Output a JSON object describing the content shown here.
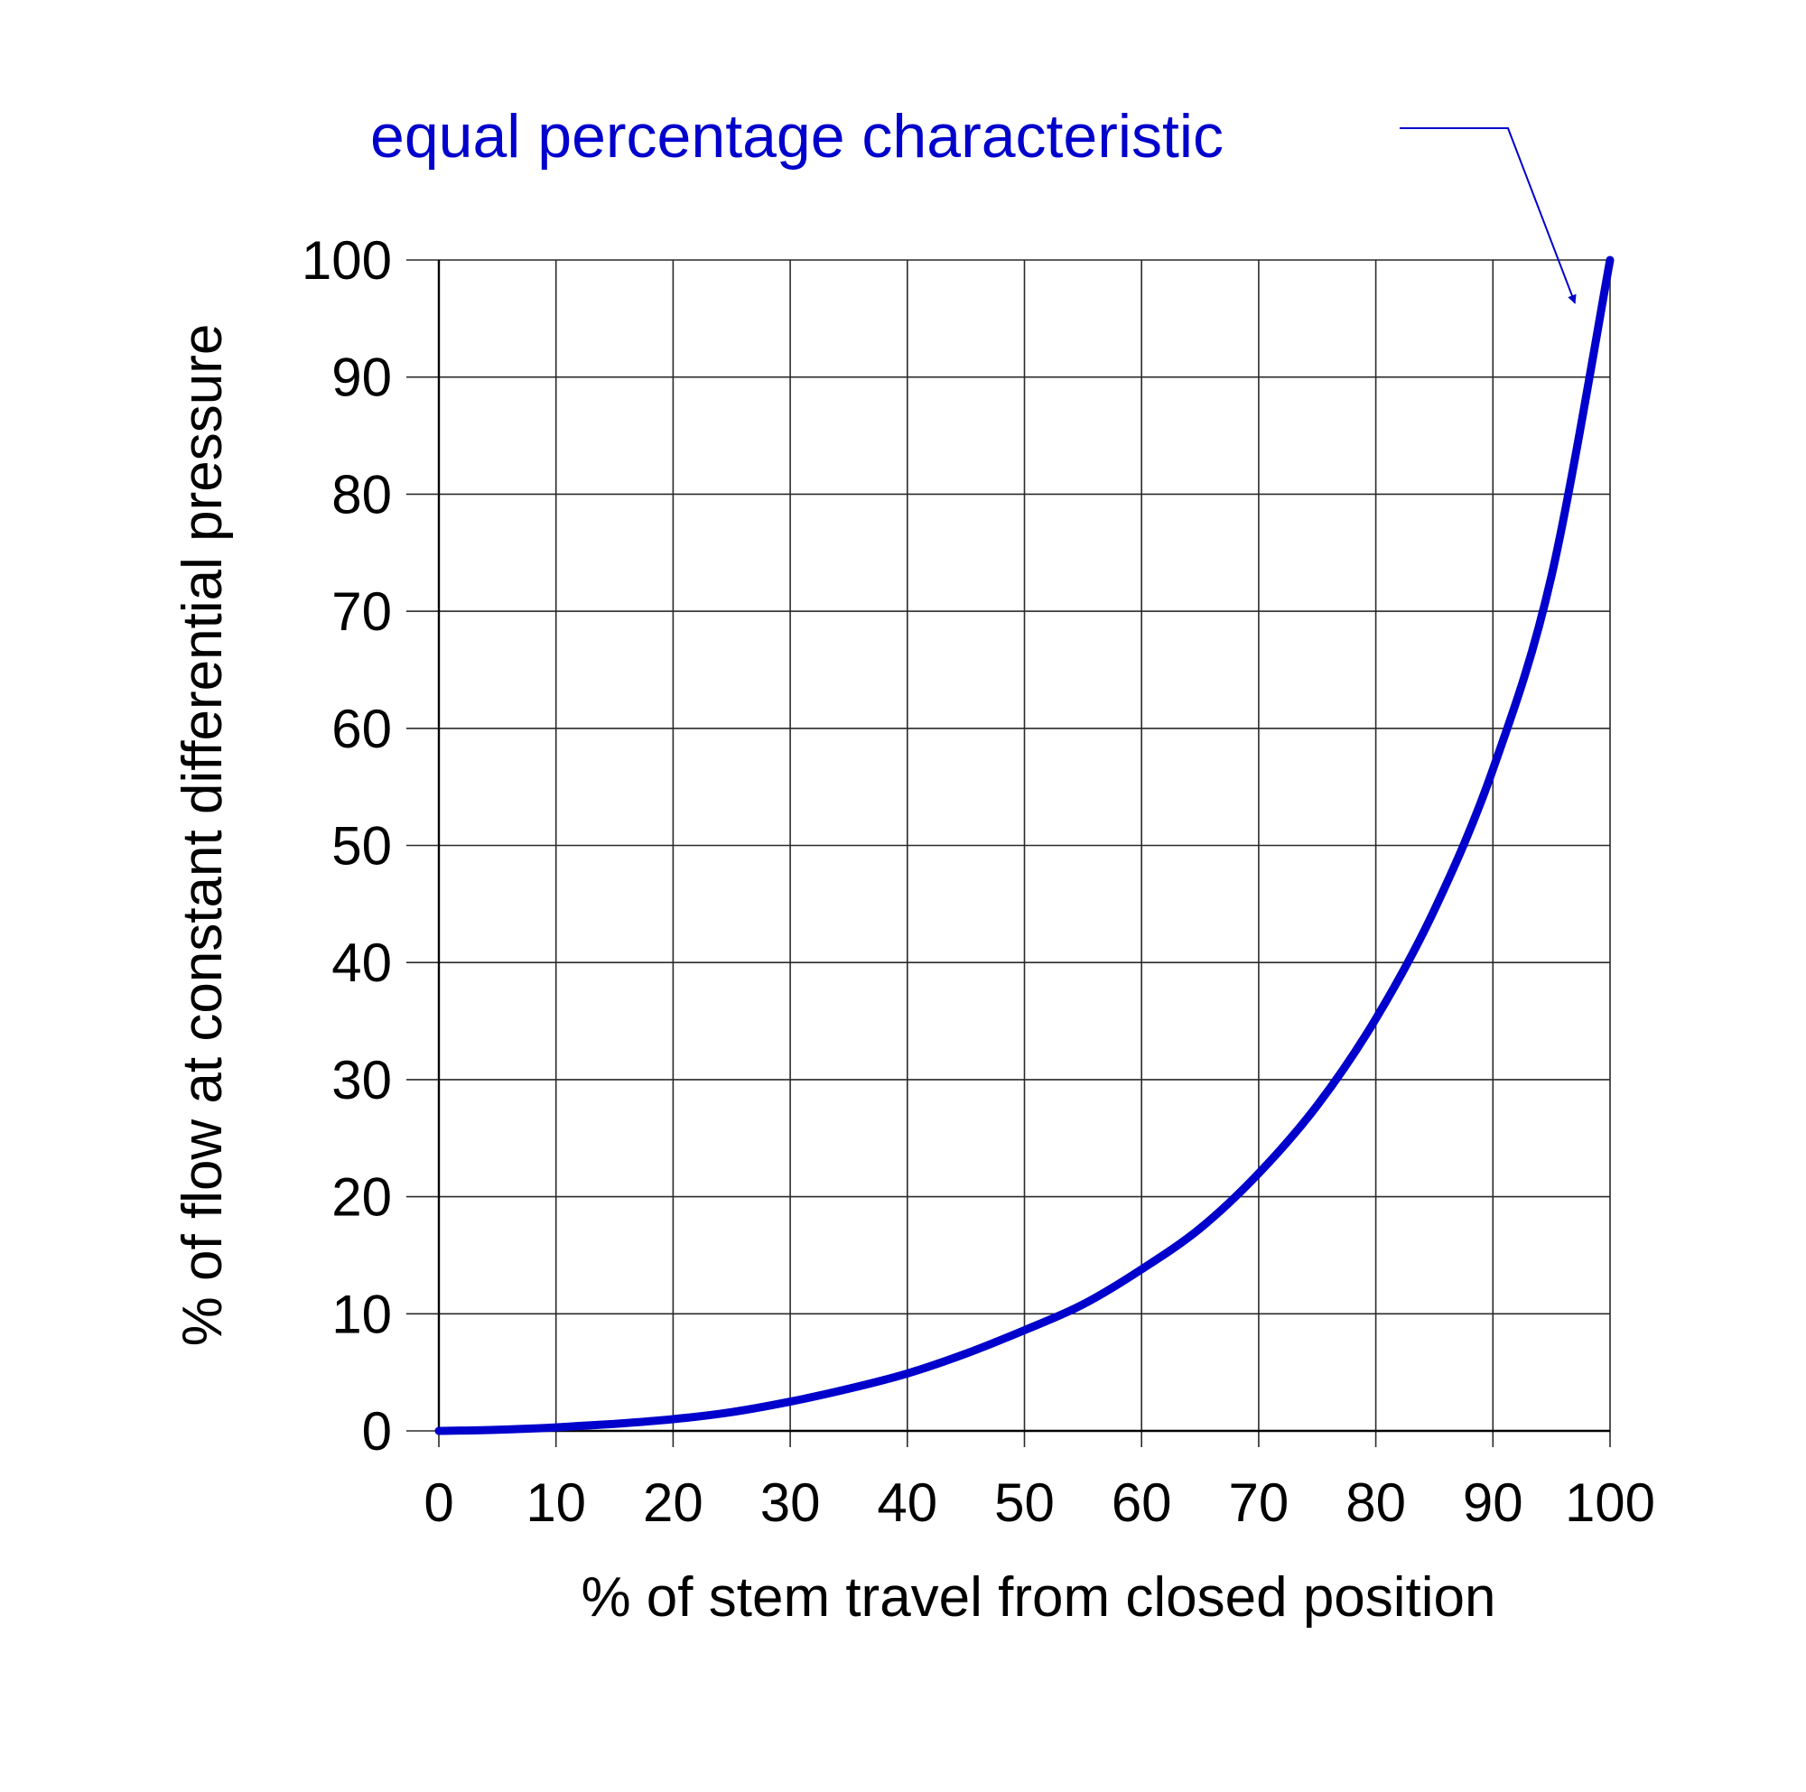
{
  "chart_data": {
    "type": "line",
    "title": "",
    "xlabel": "% of stem  travel from closed position",
    "ylabel": "% of flow at constant differential pressure",
    "xlim": [
      0,
      100
    ],
    "ylim": [
      0,
      100
    ],
    "x_ticks": [
      "0",
      "10",
      "20",
      "30",
      "40",
      "50",
      "60",
      "70",
      "80",
      "90",
      "100"
    ],
    "y_ticks": [
      "0",
      "10",
      "20",
      "30",
      "40",
      "50",
      "60",
      "70",
      "80",
      "90",
      "100"
    ],
    "grid": true,
    "legend": "none",
    "series": [
      {
        "color": "#0000cc",
        "x": [
          0,
          5,
          10,
          15,
          20,
          25,
          30,
          35,
          40,
          45,
          50,
          55,
          60,
          65,
          70,
          75,
          80,
          85,
          90,
          95,
          100
        ],
        "y": [
          0,
          0.1,
          0.3,
          0.6,
          1.0,
          1.6,
          2.5,
          3.6,
          4.9,
          6.6,
          8.6,
          10.8,
          13.8,
          17.3,
          22.0,
          27.8,
          35.2,
          44.5,
          56.5,
          73.0,
          100
        ]
      }
    ],
    "annotations": [
      {
        "text": "equal percentage characteristic",
        "color": "#0000cc",
        "points_to": {
          "x": 97,
          "y": 94
        }
      }
    ]
  }
}
